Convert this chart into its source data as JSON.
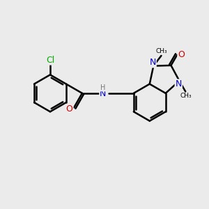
{
  "background_color": "#ebebeb",
  "bond_color": "#000000",
  "bond_width": 1.8,
  "atom_colors": {
    "Cl": "#00aa00",
    "O": "#cc0000",
    "N": "#0000cc",
    "H": "#777777",
    "C": "#000000"
  },
  "font_size_atoms": 9
}
